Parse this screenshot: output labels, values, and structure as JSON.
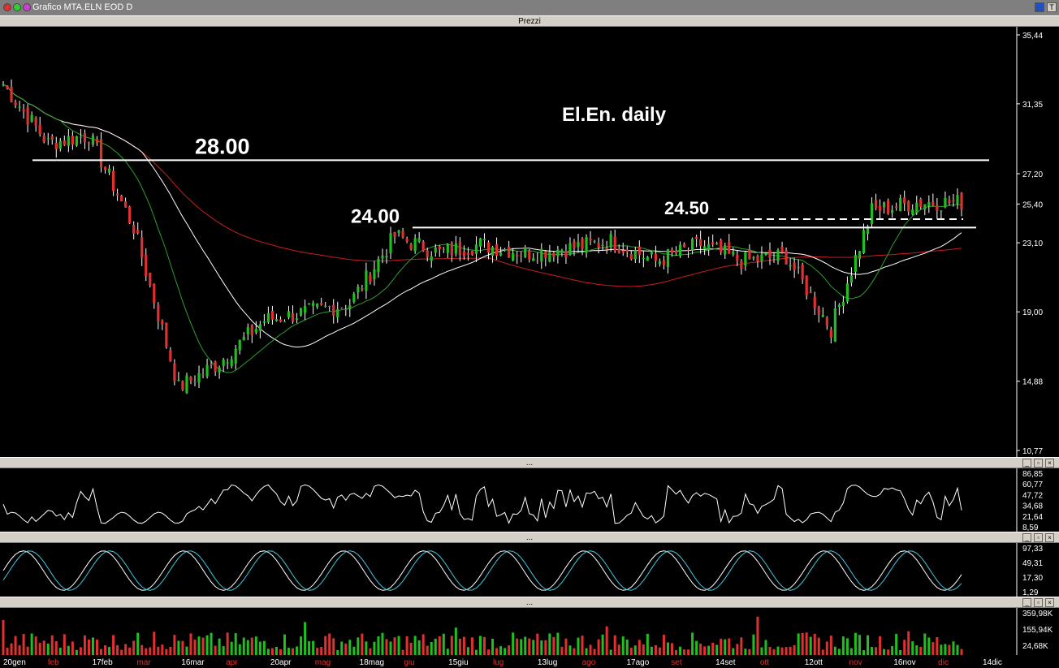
{
  "window": {
    "title": "Grafico MTA.ELN EOD D",
    "corner_label": "T"
  },
  "panes": {
    "price_title": "Prezzi",
    "indicator_title": "..."
  },
  "colors": {
    "up": "#1fbf1f",
    "down": "#e03030",
    "ma_short": "#2ca02c",
    "ma_mid": "#ffffff",
    "ma_long": "#cc1e1e",
    "osc1": "#ffffff",
    "osc2": "#ffffff",
    "osc2b": "#40c8e0",
    "volume_up": "#1fbf1f",
    "volume_down": "#e03030"
  },
  "annotations": {
    "chart_title": "El.En. daily",
    "level_28": "28.00",
    "level_24": "24.00",
    "level_245": "24.50"
  },
  "chart_data": [
    {
      "type": "candlestick",
      "title": "El.En. daily",
      "y_axis_ticks": [
        "35,44",
        "31,35",
        "27,20",
        "25,40",
        "23,10",
        "19,00",
        "14,88",
        "10,77"
      ],
      "ylim": [
        10.77,
        35.44
      ],
      "x_axis_ticks": [
        "20gen",
        "feb",
        "17feb",
        "mar",
        "16mar",
        "apr",
        "20apr",
        "mag",
        "18mag",
        "giu",
        "15giu",
        "lug",
        "13lug",
        "ago",
        "17ago",
        "set",
        "14set",
        "ott",
        "12ott",
        "nov",
        "16nov",
        "dic",
        "14dic"
      ],
      "horizontal_lines": [
        {
          "label": "28.00",
          "value": 28.0,
          "style": "solid"
        },
        {
          "label": "24.00",
          "value": 24.0,
          "style": "solid"
        },
        {
          "label": "24.50",
          "value": 24.5,
          "style": "dashed"
        }
      ],
      "key_points": [
        {
          "date": "20gen",
          "close": 32.5
        },
        {
          "date": "feb",
          "close": 29.0
        },
        {
          "date": "17feb",
          "close": 29.5
        },
        {
          "date": "mar",
          "close": 24.0
        },
        {
          "date": "16mar",
          "close": 14.5
        },
        {
          "date": "apr",
          "close": 16.0
        },
        {
          "date": "20apr",
          "close": 18.5
        },
        {
          "date": "mag",
          "close": 19.0
        },
        {
          "date": "18mag",
          "close": 19.5
        },
        {
          "date": "giu",
          "close": 23.5
        },
        {
          "date": "15giu",
          "close": 22.5
        },
        {
          "date": "lug",
          "close": 23.0
        },
        {
          "date": "13lug",
          "close": 22.5
        },
        {
          "date": "ago",
          "close": 22.8
        },
        {
          "date": "17ago",
          "close": 23.2
        },
        {
          "date": "set",
          "close": 22.0
        },
        {
          "date": "14set",
          "close": 23.0
        },
        {
          "date": "ott",
          "close": 22.0
        },
        {
          "date": "12ott",
          "close": 22.3
        },
        {
          "date": "nov",
          "close": 18.0
        },
        {
          "date": "16nov",
          "close": 25.0
        },
        {
          "date": "dic",
          "close": 25.5
        }
      ]
    },
    {
      "type": "line",
      "y_axis_ticks": [
        "86,85",
        "60,77",
        "47,72",
        "34,68",
        "21,64",
        "8,59"
      ]
    },
    {
      "type": "line",
      "y_axis_ticks": [
        "97,33",
        "49,31",
        "17,30",
        "1,29"
      ]
    },
    {
      "type": "bar",
      "y_axis_ticks": [
        "359,98K",
        "155,94K",
        "24,68K"
      ]
    }
  ]
}
